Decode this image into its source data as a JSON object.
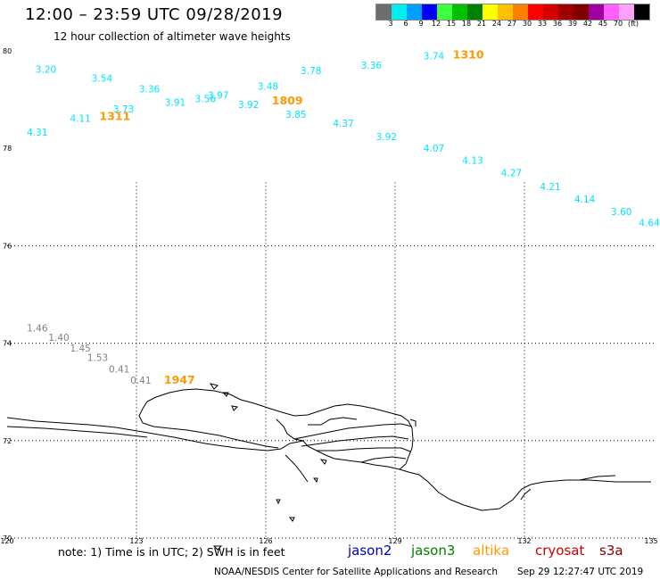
{
  "header": {
    "title": "12:00 – 23:59 UTC 09/28/2019",
    "subtitle": "12 hour collection of altimeter wave heights"
  },
  "legend": {
    "colors": [
      "#6e6e6e",
      "#00f0f0",
      "#00a0ff",
      "#0000ff",
      "#40ff40",
      "#00c000",
      "#008000",
      "#ffff00",
      "#ffc000",
      "#ff8000",
      "#ff0000",
      "#d40000",
      "#a00000",
      "#800000",
      "#a000a0",
      "#ff60ff",
      "#ffa0ff",
      "#000000"
    ],
    "labels": [
      "3",
      "6",
      "9",
      "12",
      "15",
      "18",
      "21",
      "24",
      "27",
      "30",
      "33",
      "36",
      "39",
      "42",
      "45",
      "70",
      "(ft)"
    ]
  },
  "axes": {
    "lat_labels": [
      "80",
      "78",
      "76",
      "74",
      "72",
      "70"
    ],
    "lon_labels": [
      "120",
      "123",
      "126",
      "129",
      "132",
      "135"
    ]
  },
  "wave_readings": [
    {
      "value": "3.20",
      "lon": 120.9,
      "lat": 79.55,
      "sat": "cyan"
    },
    {
      "value": "3.54",
      "lon": 122.2,
      "lat": 79.37,
      "sat": "cyan"
    },
    {
      "value": "3.36",
      "lon": 123.3,
      "lat": 79.15,
      "sat": "cyan"
    },
    {
      "value": "3.91",
      "lon": 123.9,
      "lat": 78.87,
      "sat": "cyan"
    },
    {
      "value": "3.56",
      "lon": 124.6,
      "lat": 78.95,
      "sat": "cyan"
    },
    {
      "value": "3.97",
      "lon": 124.9,
      "lat": 79.02,
      "sat": "cyan"
    },
    {
      "value": "3.92",
      "lon": 125.6,
      "lat": 78.83,
      "sat": "cyan"
    },
    {
      "value": "3.48",
      "lon": 126.05,
      "lat": 79.2,
      "sat": "cyan"
    },
    {
      "value": "3.78",
      "lon": 127.05,
      "lat": 79.52,
      "sat": "cyan"
    },
    {
      "value": "3.36",
      "lon": 128.45,
      "lat": 79.63,
      "sat": "cyan"
    },
    {
      "value": "3.74",
      "lon": 129.9,
      "lat": 79.83,
      "sat": "cyan"
    },
    {
      "value": "3.73",
      "lon": 122.7,
      "lat": 78.74,
      "sat": "cyan"
    },
    {
      "value": "4.11",
      "lon": 121.7,
      "lat": 78.54,
      "sat": "cyan"
    },
    {
      "value": "4.31",
      "lon": 120.7,
      "lat": 78.26,
      "sat": "cyan"
    },
    {
      "value": "3.85",
      "lon": 126.7,
      "lat": 78.63,
      "sat": "cyan"
    },
    {
      "value": "4.37",
      "lon": 127.8,
      "lat": 78.44,
      "sat": "cyan"
    },
    {
      "value": "3.92",
      "lon": 128.8,
      "lat": 78.17,
      "sat": "cyan"
    },
    {
      "value": "4.07",
      "lon": 129.9,
      "lat": 77.93,
      "sat": "cyan"
    },
    {
      "value": "4.13",
      "lon": 130.8,
      "lat": 77.68,
      "sat": "cyan"
    },
    {
      "value": "4.27",
      "lon": 131.7,
      "lat": 77.43,
      "sat": "cyan"
    },
    {
      "value": "4.21",
      "lon": 132.6,
      "lat": 77.14,
      "sat": "cyan"
    },
    {
      "value": "4.14",
      "lon": 133.4,
      "lat": 76.89,
      "sat": "cyan"
    },
    {
      "value": "3.60",
      "lon": 134.25,
      "lat": 76.63,
      "sat": "cyan"
    },
    {
      "value": "4.64",
      "lon": 135.2,
      "lat": 76.4,
      "sat": "cyan"
    },
    {
      "value": "1.46",
      "lon": 120.7,
      "lat": 74.24,
      "sat": "gray"
    },
    {
      "value": "1.40",
      "lon": 121.2,
      "lat": 74.05,
      "sat": "gray"
    },
    {
      "value": "1.45",
      "lon": 121.7,
      "lat": 73.83,
      "sat": "gray"
    },
    {
      "value": "1.53",
      "lon": 122.1,
      "lat": 73.64,
      "sat": "gray"
    },
    {
      "value": "0.41",
      "lon": 122.6,
      "lat": 73.4,
      "sat": "gray"
    },
    {
      "value": "0.41",
      "lon": 123.1,
      "lat": 73.17,
      "sat": "gray"
    }
  ],
  "time_labels": [
    {
      "value": "1310",
      "lon": 130.7,
      "lat": 79.84
    },
    {
      "value": "1311",
      "lon": 122.5,
      "lat": 78.58
    },
    {
      "value": "1809",
      "lon": 126.5,
      "lat": 78.9
    },
    {
      "value": "1947",
      "lon": 124.0,
      "lat": 73.17
    }
  ],
  "footer": {
    "note": "note:  1) Time is in UTC;  2) SWH is in feet",
    "satellites": [
      {
        "name": "jason2",
        "color": "#0000c0"
      },
      {
        "name": "jason3",
        "color": "#008000"
      },
      {
        "name": "altika",
        "color": "#ff9900"
      },
      {
        "name": "cryosat",
        "color": "#cc0000"
      },
      {
        "name": "s3a",
        "color": "#800000"
      }
    ],
    "credit": "NOAA/NESDIS Center for Satellite Applications and Research",
    "timestamp": "Sep 29 12:27:47 UTC 2019"
  },
  "colors": {
    "cyan": "#00e4ff",
    "gray": "#808080",
    "time": "#ff9900"
  }
}
